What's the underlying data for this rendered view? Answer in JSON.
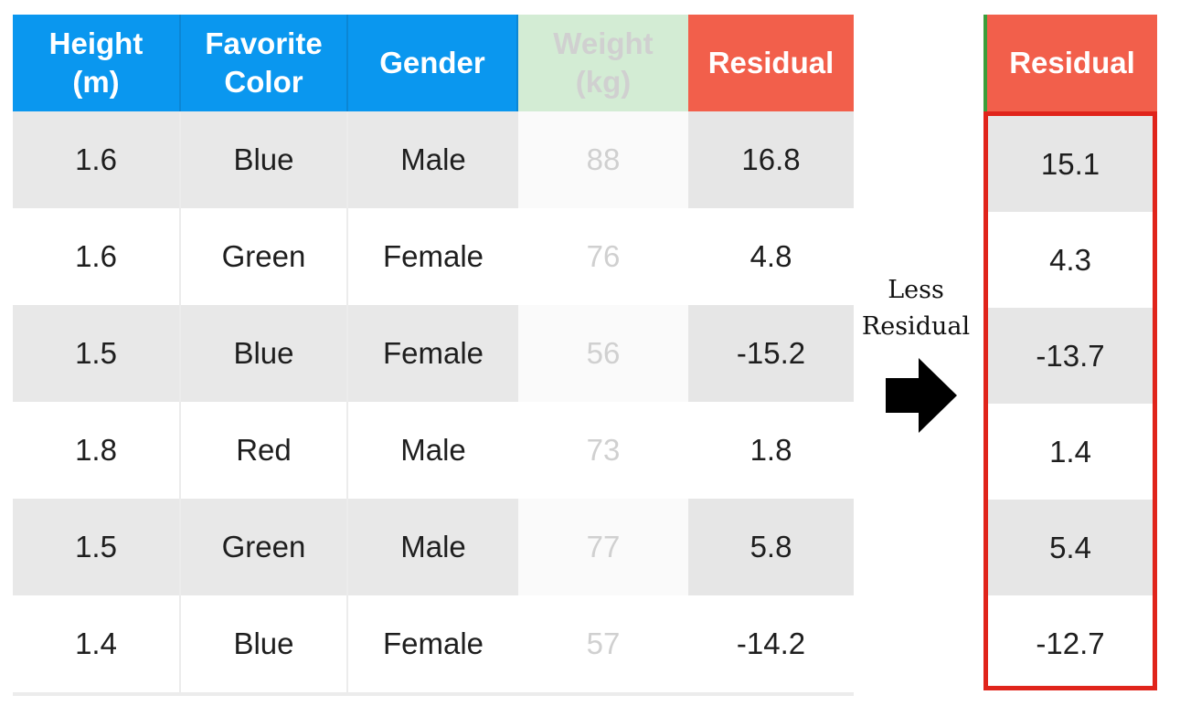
{
  "main_table": {
    "headers": [
      "Height\n(m)",
      "Favorite\nColor",
      "Gender",
      "Weight\n(kg)",
      "Residual"
    ],
    "rows": [
      [
        "1.6",
        "Blue",
        "Male",
        "88",
        "16.8"
      ],
      [
        "1.6",
        "Green",
        "Female",
        "76",
        "4.8"
      ],
      [
        "1.5",
        "Blue",
        "Female",
        "56",
        "-15.2"
      ],
      [
        "1.8",
        "Red",
        "Male",
        "73",
        "1.8"
      ],
      [
        "1.5",
        "Green",
        "Male",
        "77",
        "5.8"
      ],
      [
        "1.4",
        "Blue",
        "Female",
        "57",
        "-14.2"
      ]
    ]
  },
  "annotation": {
    "line1": "Less",
    "line2": "Residual",
    "arrow_icon": "right-arrow-icon"
  },
  "residual_table": {
    "header": "Residual",
    "values": [
      "15.1",
      "4.3",
      "-13.7",
      "1.4",
      "5.4",
      "-12.7"
    ]
  },
  "colors": {
    "header_blue": "#0a97ef",
    "header_green_faded": "#d3ecd4",
    "header_red": "#f25f4b",
    "highlight_border": "#e0241b"
  }
}
